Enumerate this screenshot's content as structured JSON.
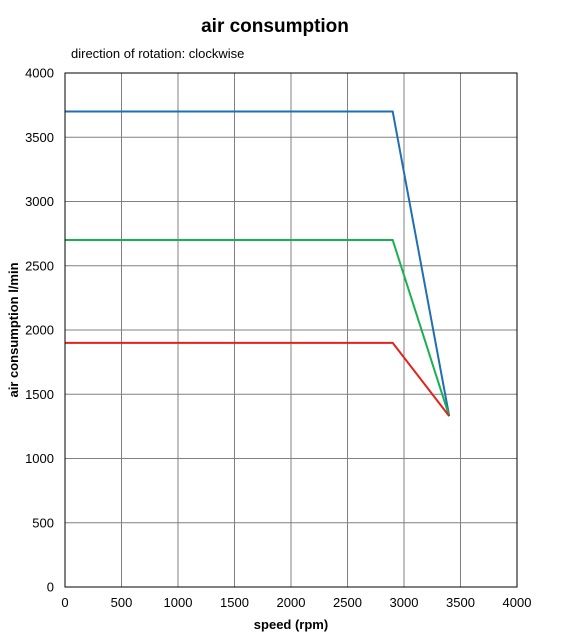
{
  "chart_data": {
    "type": "line",
    "title": "air consumption",
    "subtitle": "direction of rotation:  clockwise",
    "xlabel": "speed  (rpm)",
    "ylabel": "air consumption l/min",
    "xlim": [
      0,
      4000
    ],
    "ylim": [
      0,
      4000
    ],
    "xticks": [
      0,
      500,
      1000,
      1500,
      2000,
      2500,
      3000,
      3500,
      4000
    ],
    "yticks": [
      0,
      500,
      1000,
      1500,
      2000,
      2500,
      3000,
      3500,
      4000
    ],
    "grid": true,
    "series": [
      {
        "color": "#1f6fb4",
        "x": [
          0,
          2900,
          3400
        ],
        "y": [
          3700,
          3700,
          1330
        ]
      },
      {
        "color": "#19b04f",
        "x": [
          0,
          2900,
          3400
        ],
        "y": [
          2700,
          2700,
          1330
        ]
      },
      {
        "color": "#e3231b",
        "x": [
          0,
          2900,
          3400
        ],
        "y": [
          1900,
          1900,
          1330
        ]
      }
    ]
  }
}
